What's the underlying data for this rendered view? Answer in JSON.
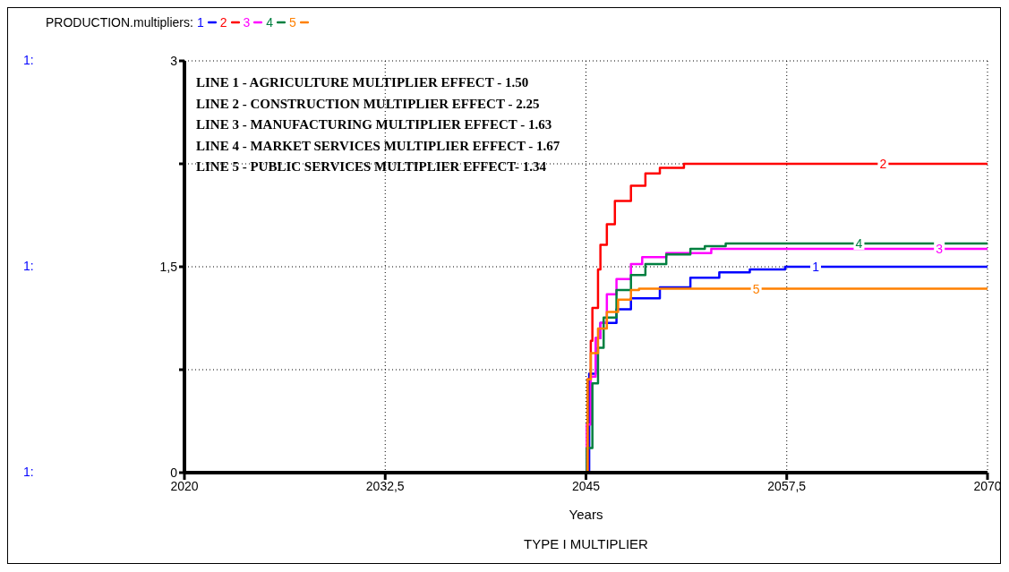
{
  "chart_data": {
    "type": "step",
    "title": "TYPE I MULTIPLIER",
    "xlabel": "Years",
    "legend_title": "PRODUCTION.multipliers:",
    "legend": "top left",
    "grid": true,
    "xlim": [
      2020,
      2070
    ],
    "xticks": [
      2020,
      {
        "value": 2032.5,
        "label": "2032,5"
      },
      2045,
      {
        "value": 2057.5,
        "label": "2057,5"
      },
      2070
    ],
    "ylim": [
      0,
      3
    ],
    "yticks": [
      0,
      {
        "value": 0.75,
        "label": null
      },
      {
        "value": 1.5,
        "label": "1,5"
      },
      {
        "value": 2.25,
        "label": null
      },
      3
    ],
    "annotations": [
      "1:",
      "1:",
      "1:",
      "LINE 1 - AGRICULTURE MULTIPLIER EFFECT - 1.50",
      "LINE 2 - CONSTRUCTION MULTIPLIER EFFECT - 2.25",
      "LINE 3 - MANUFACTURING MULTIPLIER EFFECT - 1.63",
      "LINE 4 - MARKET SERVICES MULTIPLIER EFFECT - 1.67",
      "LINE 5 - PUBLIC SERVICES MULTIPLIER EFFECT- 1.34"
    ],
    "series": [
      {
        "name": "1",
        "color": "#0000ff",
        "x": [
          2020,
          2022,
          2045,
          2045.2,
          2045.6,
          2045.9,
          2046.9,
          2047.8,
          2049.6,
          2051.5,
          2053.3,
          2055.2,
          2057.4,
          2059.3,
          2070
        ],
        "values": [
          0,
          0,
          0,
          0.72,
          0.98,
          1.09,
          1.19,
          1.27,
          1.35,
          1.42,
          1.46,
          1.48,
          1.5,
          1.5,
          1.5
        ]
      },
      {
        "name": "2",
        "color": "#ff0000",
        "x": [
          2045,
          2045.1,
          2045.3,
          2045.4,
          2045.75,
          2045.9,
          2046.3,
          2046.8,
          2047.8,
          2048.7,
          2049.6,
          2051.1,
          2063.5,
          2070
        ],
        "values": [
          0,
          0.68,
          0.96,
          1.2,
          1.48,
          1.66,
          1.81,
          1.98,
          2.09,
          2.18,
          2.22,
          2.25,
          2.25,
          2.25
        ]
      },
      {
        "name": "3",
        "color": "#ff00ff",
        "x": [
          2045,
          2045.05,
          2045.3,
          2045.6,
          2045.9,
          2046.3,
          2046.9,
          2047.8,
          2048.5,
          2050.0,
          2052.8,
          2067,
          2070
        ],
        "values": [
          0,
          0.35,
          0.7,
          0.98,
          1.09,
          1.3,
          1.41,
          1.52,
          1.57,
          1.6,
          1.63,
          1.63,
          1.63
        ]
      },
      {
        "name": "4",
        "color": "#008040",
        "x": [
          2045,
          2045.05,
          2045.4,
          2045.75,
          2046.1,
          2046.9,
          2047.8,
          2048.7,
          2050.0,
          2051.5,
          2052.4,
          2053.7,
          2062,
          2070
        ],
        "values": [
          0,
          0.18,
          0.65,
          0.91,
          1.13,
          1.33,
          1.44,
          1.52,
          1.59,
          1.63,
          1.65,
          1.67,
          1.67,
          1.67
        ]
      },
      {
        "name": "5",
        "color": "#ff8000",
        "x": [
          2020,
          2036.5,
          2045,
          2045.1,
          2045.3,
          2045.75,
          2046.3,
          2047.0,
          2047.8,
          2048.3,
          2051.9,
          2055.6,
          2070
        ],
        "values": [
          0,
          0,
          0,
          0.68,
          0.87,
          1.05,
          1.17,
          1.26,
          1.33,
          1.34,
          1.34,
          1.34,
          1.34
        ]
      }
    ]
  }
}
